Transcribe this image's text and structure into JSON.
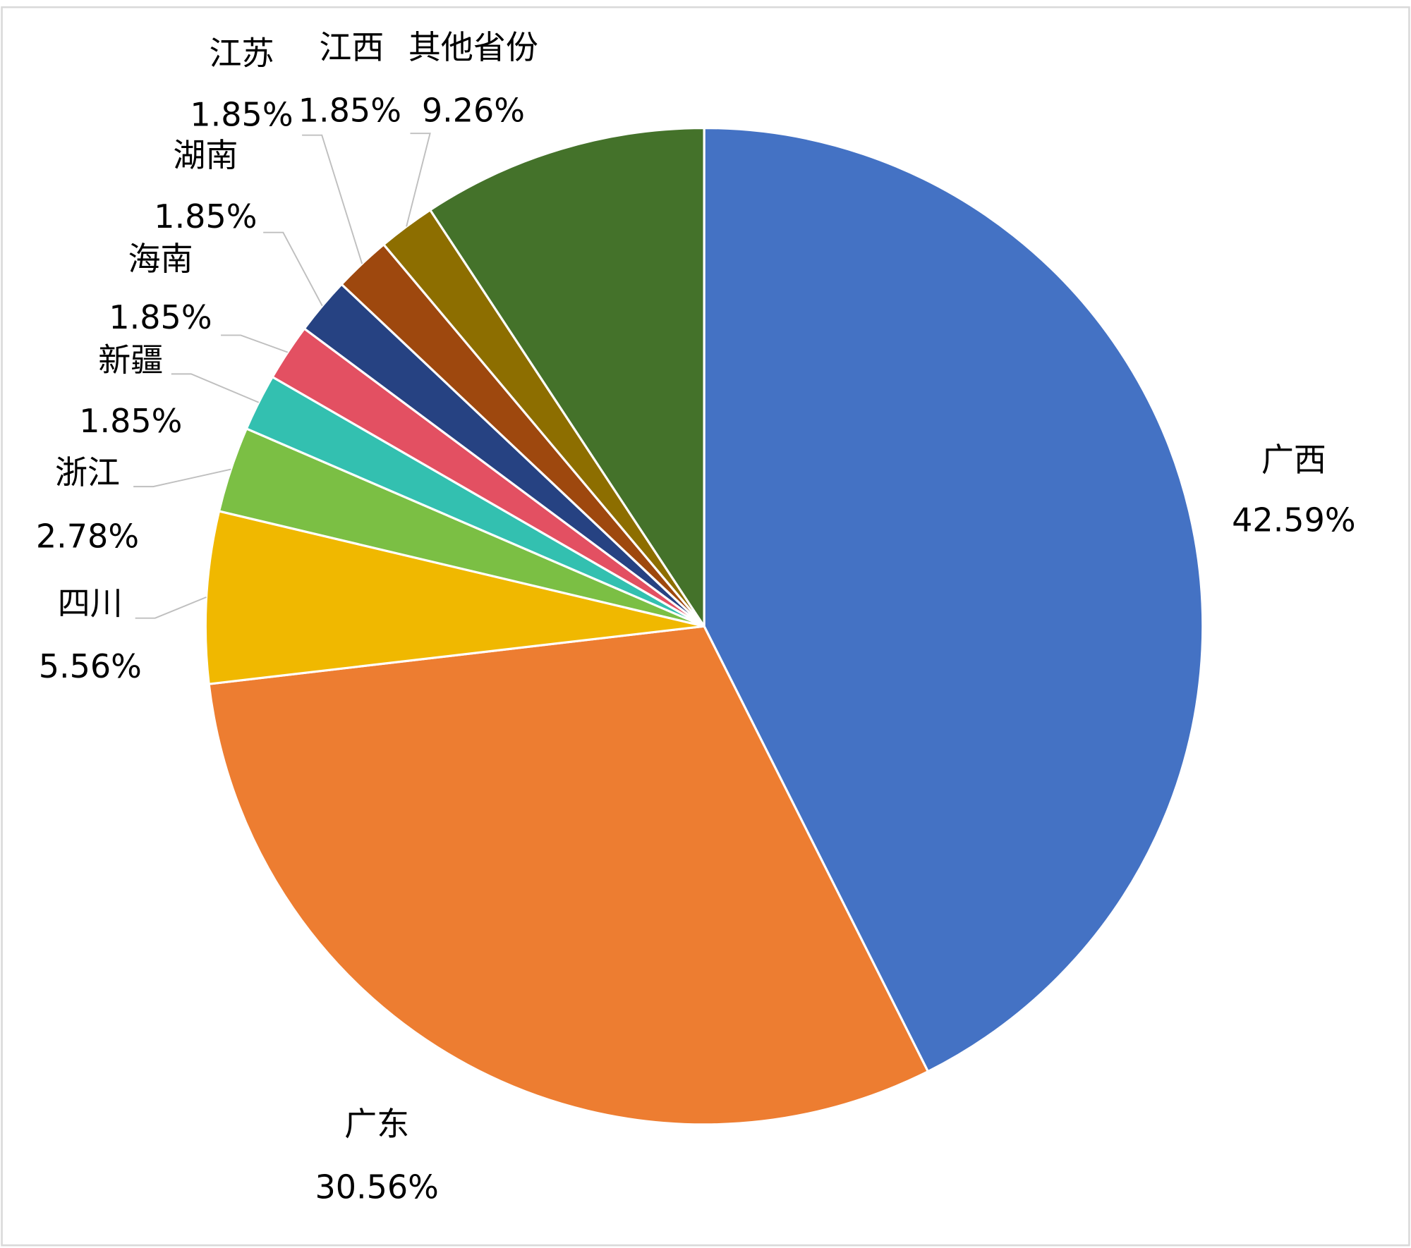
{
  "chart_data": {
    "type": "pie",
    "categories": [
      "广西",
      "广东",
      "四川",
      "浙江",
      "新疆",
      "海南",
      "湖南",
      "江苏",
      "江西",
      "其他省份"
    ],
    "values": [
      42.59,
      30.56,
      5.56,
      2.78,
      1.85,
      1.85,
      1.85,
      1.85,
      1.85,
      9.26
    ],
    "value_labels": [
      "42.59%",
      "30.56%",
      "5.56%",
      "2.78%",
      "1.85%",
      "1.85%",
      "1.85%",
      "1.85%",
      "1.85%",
      "9.26%"
    ],
    "colors": [
      "#4472c4",
      "#ed7d31",
      "#f0b800",
      "#7bbf44",
      "#33c0b0",
      "#e35062",
      "#264282",
      "#9e480e",
      "#8d6e00",
      "#44722a"
    ]
  }
}
